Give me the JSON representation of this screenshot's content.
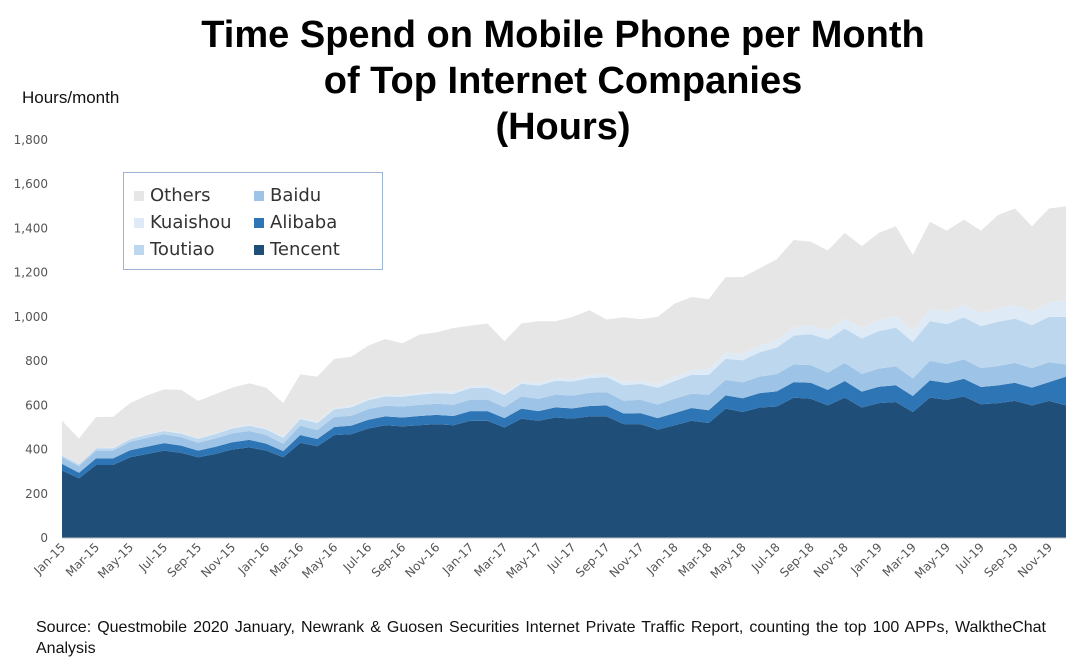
{
  "title_lines": [
    "Time Spend on Mobile Phone per Month",
    "of Top Internet Companies",
    "(Hours)"
  ],
  "y_axis_unit_label": "Hours/month",
  "source_text": "Source: Questmobile 2020 January, Newrank & Guosen Securities Internet Private Traffic Report, counting the top 100 APPs, WalktheChat Analysis",
  "chart_data": {
    "type": "area",
    "stacked": true,
    "title": "Time Spend on Mobile Phone per Month of Top Internet Companies (Hours)",
    "ylabel": "Hours/month",
    "xlabel": "",
    "ylim": [
      0,
      1800
    ],
    "yticks": [
      0,
      200,
      400,
      600,
      800,
      1000,
      1200,
      1400,
      1600,
      1800
    ],
    "ytick_labels": [
      "0",
      "200",
      "400",
      "600",
      "800",
      "1,000",
      "1,200",
      "1,400",
      "1,600",
      "1,800"
    ],
    "x": [
      "Jan-15",
      "Feb-15",
      "Mar-15",
      "Apr-15",
      "May-15",
      "Jun-15",
      "Jul-15",
      "Aug-15",
      "Sep-15",
      "Oct-15",
      "Nov-15",
      "Dec-15",
      "Jan-16",
      "Feb-16",
      "Mar-16",
      "Apr-16",
      "May-16",
      "Jun-16",
      "Jul-16",
      "Aug-16",
      "Sep-16",
      "Oct-16",
      "Nov-16",
      "Dec-16",
      "Jan-17",
      "Feb-17",
      "Mar-17",
      "Apr-17",
      "May-17",
      "Jun-17",
      "Jul-17",
      "Aug-17",
      "Sep-17",
      "Oct-17",
      "Nov-17",
      "Dec-17",
      "Jan-18",
      "Feb-18",
      "Mar-18",
      "Apr-18",
      "May-18",
      "Jun-18",
      "Jul-18",
      "Aug-18",
      "Sep-18",
      "Oct-18",
      "Nov-18",
      "Dec-18",
      "Jan-19",
      "Feb-19",
      "Mar-19",
      "Apr-19",
      "May-19",
      "Jun-19",
      "Jul-19",
      "Aug-19",
      "Sep-19",
      "Oct-19",
      "Nov-19",
      "Dec-19"
    ],
    "xtick_labels": [
      "Jan-15",
      "Mar-15",
      "May-15",
      "Jul-15",
      "Sep-15",
      "Nov-15",
      "Jan-16",
      "Mar-16",
      "May-16",
      "Jul-16",
      "Sep-16",
      "Nov-16",
      "Jan-17",
      "Mar-17",
      "May-17",
      "Jul-17",
      "Sep-17",
      "Nov-17",
      "Jan-18",
      "Mar-18",
      "May-18",
      "Jul-18",
      "Sep-18",
      "Nov-18",
      "Jan-19",
      "Mar-19",
      "May-19",
      "Jul-19",
      "Sep-19",
      "Nov-19"
    ],
    "legend": {
      "placement": "top-left",
      "order": [
        "Others",
        "Baidu",
        "Kuaishou",
        "Alibaba",
        "Toutiao",
        "Tencent"
      ]
    },
    "series": [
      {
        "name": "Tencent",
        "color": "#1f4e79",
        "values": [
          305,
          270,
          330,
          330,
          365,
          380,
          395,
          385,
          365,
          380,
          400,
          410,
          395,
          365,
          430,
          415,
          465,
          470,
          495,
          510,
          505,
          510,
          515,
          510,
          530,
          530,
          500,
          540,
          530,
          545,
          540,
          550,
          550,
          515,
          515,
          490,
          510,
          530,
          520,
          585,
          570,
          590,
          595,
          635,
          630,
          600,
          635,
          590,
          610,
          615,
          570,
          635,
          625,
          640,
          605,
          610,
          620,
          600,
          620,
          600
        ]
      },
      {
        "name": "Alibaba",
        "color": "#2e75b6",
        "values": [
          30,
          25,
          30,
          30,
          32,
          33,
          34,
          33,
          30,
          32,
          33,
          34,
          32,
          28,
          36,
          33,
          37,
          38,
          40,
          40,
          40,
          42,
          42,
          42,
          44,
          44,
          42,
          45,
          44,
          46,
          46,
          47,
          50,
          48,
          50,
          52,
          55,
          58,
          58,
          60,
          62,
          65,
          68,
          70,
          72,
          70,
          75,
          72,
          74,
          76,
          72,
          78,
          76,
          80,
          78,
          80,
          82,
          80,
          85,
          130
        ]
      },
      {
        "name": "Baidu",
        "color": "#9dc3e6",
        "values": [
          30,
          30,
          35,
          35,
          38,
          40,
          40,
          38,
          36,
          38,
          40,
          40,
          38,
          34,
          42,
          40,
          45,
          45,
          48,
          48,
          50,
          50,
          50,
          50,
          52,
          52,
          50,
          55,
          55,
          58,
          58,
          60,
          60,
          58,
          60,
          62,
          65,
          65,
          70,
          70,
          72,
          75,
          78,
          80,
          80,
          78,
          82,
          80,
          82,
          85,
          80,
          88,
          86,
          88,
          85,
          88,
          90,
          88,
          90,
          55
        ]
      },
      {
        "name": "Toutiao",
        "color": "#bdd7ee",
        "values": [
          8,
          8,
          10,
          10,
          12,
          14,
          15,
          16,
          18,
          20,
          22,
          24,
          26,
          26,
          30,
          32,
          35,
          38,
          40,
          42,
          44,
          46,
          48,
          50,
          52,
          54,
          55,
          58,
          60,
          62,
          64,
          66,
          68,
          70,
          72,
          75,
          80,
          85,
          90,
          95,
          100,
          110,
          120,
          130,
          140,
          150,
          155,
          160,
          170,
          175,
          165,
          180,
          180,
          190,
          190,
          200,
          200,
          195,
          205,
          215
        ]
      },
      {
        "name": "Kuaishou",
        "color": "#deebf7",
        "values": [
          2,
          2,
          2,
          3,
          3,
          3,
          3,
          4,
          4,
          4,
          5,
          5,
          5,
          5,
          6,
          6,
          6,
          7,
          7,
          7,
          8,
          8,
          9,
          9,
          10,
          10,
          10,
          11,
          11,
          12,
          12,
          13,
          14,
          15,
          16,
          18,
          20,
          22,
          25,
          28,
          30,
          32,
          35,
          38,
          40,
          42,
          45,
          48,
          50,
          52,
          50,
          55,
          56,
          58,
          58,
          60,
          62,
          62,
          64,
          75
        ]
      },
      {
        "name": "Others",
        "color": "#e7e6e6",
        "values": [
          155,
          115,
          140,
          140,
          160,
          175,
          185,
          194,
          167,
          176,
          180,
          187,
          184,
          152,
          196,
          204,
          222,
          222,
          240,
          253,
          233,
          264,
          266,
          289,
          272,
          280,
          233,
          261,
          281,
          257,
          280,
          294,
          246,
          292,
          277,
          303,
          330,
          330,
          317,
          342,
          346,
          348,
          364,
          395,
          378,
          360,
          388,
          370,
          394,
          407,
          343,
          394,
          367,
          384,
          374,
          422,
          436,
          385,
          426,
          425
        ]
      }
    ]
  }
}
